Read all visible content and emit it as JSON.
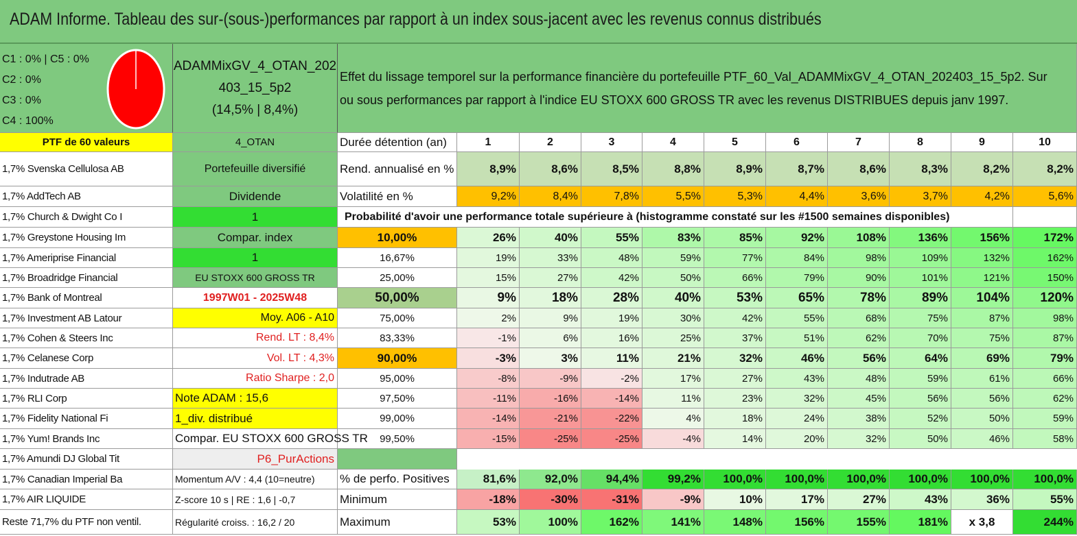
{
  "title": "ADAM Informe. Tableau des sur-(sous-)performances par rapport à un index sous-jacent avec les revenus connus distribués",
  "classes": [
    "C1 : 0% | C5 : 0%",
    "C2 : 0%",
    "C3 : 0%",
    "C4 : 100%"
  ],
  "pie": {
    "C4_percent": 100,
    "color": "#ff0000"
  },
  "portfolio_name": [
    "ADAMMixGV_4_OTAN_202",
    "403_15_5p2",
    "(14,5% | 8,4%)"
  ],
  "description": [
    "Effet du lissage temporel sur la performance financière du portefeuille PTF_60_Val_ADAMMixGV_4_OTAN_202403_15_5p2. Sur",
    "ou sous performances par rapport à l'indice EU STOXX 600 GROSS TR avec les revenus DISTRIBUES depuis janv 1997."
  ],
  "ptf_label": "PTF de 60 valeurs",
  "holdings": [
    "1,7% Svenska Cellulosa AB",
    "1,7% AddTech AB",
    "1,7% Church & Dwight Co I",
    "1,7% Greystone Housing Im",
    "1,7% Ameriprise Financial",
    "1,7% Broadridge Financial",
    "1,7% Bank of Montreal",
    "1,7% Investment AB Latour",
    "1,7% Cohen & Steers Inc",
    "1,7% Celanese Corp",
    "1,7% Indutrade AB",
    "1,7% RLI Corp",
    "1,7% Fidelity National Fi",
    "1,7% Yum! Brands Inc",
    "1,7% Amundi DJ Global Tit",
    "1,7% Canadian Imperial Ba",
    "1,7% AIR LIQUIDE",
    "Reste 71,7% du PTF non ventil."
  ],
  "info": [
    "4_OTAN",
    "Portefeuille diversifié",
    "Dividende",
    "1",
    "Compar. index",
    "1",
    "EU STOXX 600 GROSS TR",
    "1997W01 - 2025W48",
    "Moy. A06 - A10",
    "Rend. LT : 8,4%",
    "Vol. LT : 4,3%",
    "Ratio Sharpe : 2,0",
    "Note ADAM : 15,6",
    "1_div. distribué",
    "Compar. EU STOXX 600 GROSS TR",
    "P6_PurActions",
    "Momentum A/V : 4,4 (10=neutre)",
    "Z-score 10 s | RE : 1,6 | -0,7",
    "Régularité croiss. : 16,2 / 20"
  ],
  "table": {
    "duration_label": "Durée détention (an)",
    "years": [
      "1",
      "2",
      "3",
      "4",
      "5",
      "6",
      "7",
      "8",
      "9",
      "10"
    ],
    "rend_label": "Rend. annualisé en %",
    "rend": [
      "8,9%",
      "8,6%",
      "8,5%",
      "8,8%",
      "8,9%",
      "8,7%",
      "8,6%",
      "8,3%",
      "8,2%",
      "8,2%"
    ],
    "vol_label": "Volatilité en %",
    "vol": [
      "9,2%",
      "8,4%",
      "7,8%",
      "5,5%",
      "5,3%",
      "4,4%",
      "3,6%",
      "3,7%",
      "4,2%",
      "5,6%"
    ],
    "prob_label": "Probabilité d'avoir une performance totale supérieure à (histogramme constaté sur les #1500 semaines disponibles)",
    "quantiles": [
      {
        "q": "10,00%",
        "v": [
          "26%",
          "40%",
          "55%",
          "83%",
          "85%",
          "92%",
          "108%",
          "136%",
          "156%",
          "172%"
        ]
      },
      {
        "q": "16,67%",
        "v": [
          "19%",
          "33%",
          "48%",
          "59%",
          "77%",
          "84%",
          "98%",
          "109%",
          "132%",
          "162%"
        ]
      },
      {
        "q": "25,00%",
        "v": [
          "15%",
          "27%",
          "42%",
          "50%",
          "66%",
          "79%",
          "90%",
          "101%",
          "121%",
          "150%"
        ]
      },
      {
        "q": "50,00%",
        "v": [
          "9%",
          "18%",
          "28%",
          "40%",
          "53%",
          "65%",
          "78%",
          "89%",
          "104%",
          "120%"
        ]
      },
      {
        "q": "75,00%",
        "v": [
          "2%",
          "9%",
          "19%",
          "30%",
          "42%",
          "55%",
          "68%",
          "75%",
          "87%",
          "98%"
        ]
      },
      {
        "q": "83,33%",
        "v": [
          "-1%",
          "6%",
          "16%",
          "25%",
          "37%",
          "51%",
          "62%",
          "70%",
          "75%",
          "87%"
        ]
      },
      {
        "q": "90,00%",
        "v": [
          "-3%",
          "3%",
          "11%",
          "21%",
          "32%",
          "46%",
          "56%",
          "64%",
          "69%",
          "79%"
        ]
      },
      {
        "q": "95,00%",
        "v": [
          "-8%",
          "-9%",
          "-2%",
          "17%",
          "27%",
          "43%",
          "48%",
          "59%",
          "61%",
          "66%"
        ]
      },
      {
        "q": "97,50%",
        "v": [
          "-11%",
          "-16%",
          "-14%",
          "11%",
          "23%",
          "32%",
          "45%",
          "56%",
          "56%",
          "62%"
        ]
      },
      {
        "q": "99,00%",
        "v": [
          "-14%",
          "-21%",
          "-22%",
          "4%",
          "18%",
          "24%",
          "38%",
          "52%",
          "50%",
          "59%"
        ]
      },
      {
        "q": "99,50%",
        "v": [
          "-15%",
          "-25%",
          "-25%",
          "-4%",
          "14%",
          "20%",
          "32%",
          "50%",
          "46%",
          "58%"
        ]
      }
    ],
    "pos_label": "% de perfo. Positives",
    "pos": [
      "81,6%",
      "92,0%",
      "94,4%",
      "99,2%",
      "100,0%",
      "100,0%",
      "100,0%",
      "100,0%",
      "100,0%",
      "100,0%"
    ],
    "min_label": "Minimum",
    "min": [
      "-18%",
      "-30%",
      "-31%",
      "-9%",
      "10%",
      "17%",
      "27%",
      "43%",
      "36%",
      "55%"
    ],
    "max_label": "Maximum",
    "max": [
      "53%",
      "100%",
      "162%",
      "141%",
      "148%",
      "156%",
      "155%",
      "181%",
      "x 3,8",
      "244%"
    ]
  },
  "colors": {
    "header_green": "#7fc97f",
    "yellow": "#ffff00",
    "orange": "#ffc000",
    "bright_green": "#33dd33",
    "red_text": "#e02020"
  }
}
